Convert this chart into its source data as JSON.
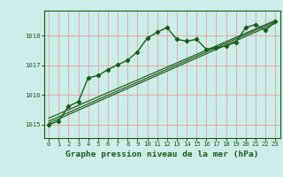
{
  "bg_color": "#cceee8",
  "grid_color": "#e8a0a0",
  "line_color": "#1a5c1a",
  "title": "Graphe pression niveau de la mer (hPa)",
  "xlim": [
    -0.5,
    23.5
  ],
  "ylim": [
    1014.55,
    1018.85
  ],
  "yticks": [
    1015,
    1016,
    1017,
    1018
  ],
  "xticks": [
    0,
    1,
    2,
    3,
    4,
    5,
    6,
    7,
    8,
    9,
    10,
    11,
    12,
    13,
    14,
    15,
    16,
    17,
    18,
    19,
    20,
    21,
    22,
    23
  ],
  "main_x": [
    0,
    1,
    2,
    3,
    4,
    5,
    6,
    7,
    8,
    9,
    10,
    11,
    12,
    13,
    14,
    15,
    16,
    17,
    18,
    19,
    20,
    21,
    22,
    23
  ],
  "main_y": [
    1015.0,
    1015.12,
    1015.62,
    1015.78,
    1016.58,
    1016.66,
    1016.86,
    1017.02,
    1017.18,
    1017.46,
    1017.92,
    1018.12,
    1018.28,
    1017.88,
    1017.82,
    1017.88,
    1017.55,
    1017.6,
    1017.66,
    1017.78,
    1018.28,
    1018.38,
    1018.18,
    1018.48
  ],
  "line2_x": [
    0,
    23
  ],
  "line2_y": [
    1015.05,
    1018.42
  ],
  "line3_x": [
    0,
    23
  ],
  "line3_y": [
    1015.12,
    1018.48
  ],
  "line4_x": [
    0,
    23
  ],
  "line4_y": [
    1015.22,
    1018.52
  ],
  "title_fontsize": 6.8,
  "tick_fontsize": 5.2
}
